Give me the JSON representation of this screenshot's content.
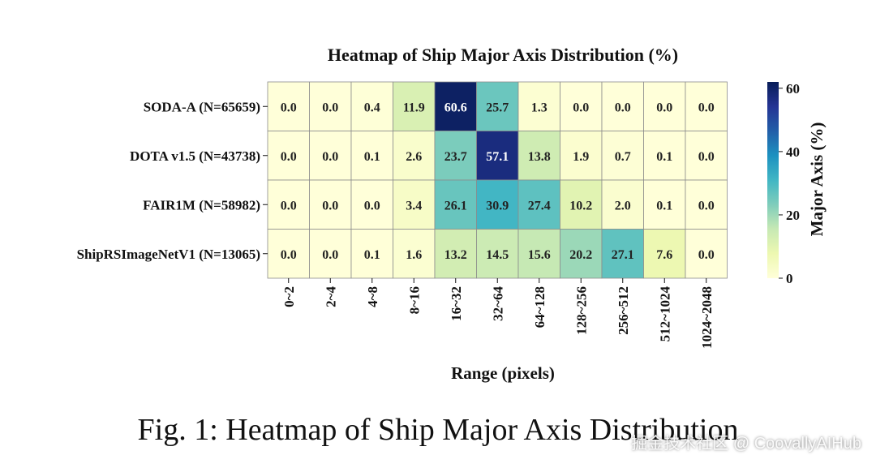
{
  "figure": {
    "caption": "Fig. 1: Heatmap of Ship Major Axis Distribution",
    "watermark": "掘金技术社区 @ CoovallyAIHub"
  },
  "chart_data": {
    "type": "heatmap",
    "title": "Heatmap of Ship Major Axis Distribution (%)",
    "xlabel": "Range (pixels)",
    "ylabel": "",
    "x_categories": [
      "0~2",
      "2~4",
      "4~8",
      "8~16",
      "16~32",
      "32~64",
      "64~128",
      "128~256",
      "256~512",
      "512~1024",
      "1024~2048"
    ],
    "y_categories": [
      "SODA-A (N=65659)",
      "DOTA v1.5 (N=43738)",
      "FAIR1M (N=58982)",
      "ShipRSImageNetV1 (N=13065)"
    ],
    "values": [
      [
        0.0,
        0.0,
        0.4,
        11.9,
        60.6,
        25.7,
        1.3,
        0.0,
        0.0,
        0.0,
        0.0
      ],
      [
        0.0,
        0.0,
        0.1,
        2.6,
        23.7,
        57.1,
        13.8,
        1.9,
        0.7,
        0.1,
        0.0
      ],
      [
        0.0,
        0.0,
        0.0,
        3.4,
        26.1,
        30.9,
        27.4,
        10.2,
        2.0,
        0.1,
        0.0
      ],
      [
        0.0,
        0.0,
        0.1,
        1.6,
        13.2,
        14.5,
        15.6,
        20.2,
        27.1,
        7.6,
        0.0
      ]
    ],
    "colorbar": {
      "label": "Major Axis (%)",
      "range": [
        0,
        62
      ],
      "ticks": [
        0,
        20,
        40,
        60
      ],
      "colormap": "YlGnBu"
    },
    "value_format": "1 decimal"
  }
}
